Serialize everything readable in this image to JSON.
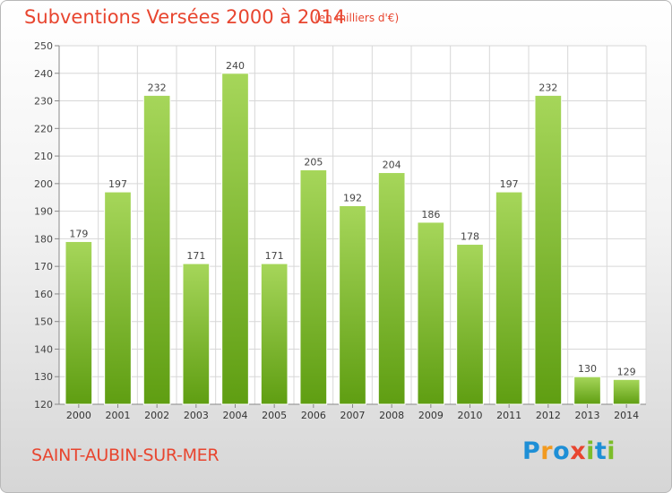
{
  "header": {
    "title": "Subventions Versées 2000 à 2014",
    "unit": "(en milliers d'€)"
  },
  "footer": {
    "commune": "SAINT-AUBIN-SUR-MER",
    "logo": "Proxiti"
  },
  "colors": {
    "accent": "#e8452f",
    "bar_light": "#a6d65a",
    "bar_dark": "#5f9e12",
    "grid": "#d7d7d7",
    "logo_letters": [
      "#1e8fd6",
      "#f29a1f",
      "#1e8fd6",
      "#e8452f",
      "#7cbd2a",
      "#1e8fd6",
      "#7cbd2a"
    ]
  },
  "chart_data": {
    "type": "bar",
    "title": "Subventions Versées 2000 à 2014",
    "subtitle": "(en milliers d'€)",
    "categories": [
      "2000",
      "2001",
      "2002",
      "2003",
      "2004",
      "2005",
      "2006",
      "2007",
      "2008",
      "2009",
      "2010",
      "2011",
      "2012",
      "2013",
      "2014"
    ],
    "values": [
      179,
      197,
      232,
      171,
      240,
      171,
      205,
      192,
      204,
      186,
      178,
      197,
      232,
      130,
      129
    ],
    "ylim": [
      120,
      250
    ],
    "yticks": [
      120,
      130,
      140,
      150,
      160,
      170,
      180,
      190,
      200,
      210,
      220,
      230,
      240,
      250
    ],
    "grid": true,
    "legend": "none"
  }
}
